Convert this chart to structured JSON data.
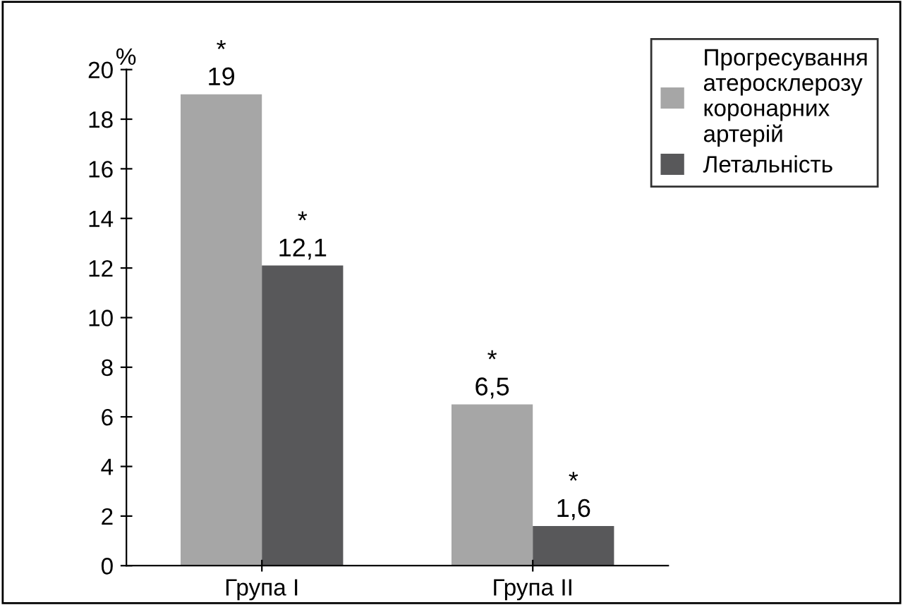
{
  "chart_data": {
    "type": "bar",
    "ylabel": "%",
    "categories": [
      "Група I",
      "Група II"
    ],
    "series": [
      {
        "name": "Прогресування атеросклерозу коронарних артерій",
        "color": "#a6a6a6",
        "values": [
          19,
          6.5
        ],
        "value_labels": [
          "*\n19",
          "*\n6,5"
        ]
      },
      {
        "name": "Летальність",
        "color": "#58585a",
        "values": [
          12.1,
          1.6
        ],
        "value_labels": [
          "*\n12,1",
          "*\n1,6"
        ]
      }
    ],
    "ylim": [
      0,
      20
    ],
    "yticks": [
      0,
      2,
      4,
      6,
      8,
      10,
      12,
      14,
      16,
      18,
      20
    ],
    "grid": false,
    "legend": "top right"
  }
}
